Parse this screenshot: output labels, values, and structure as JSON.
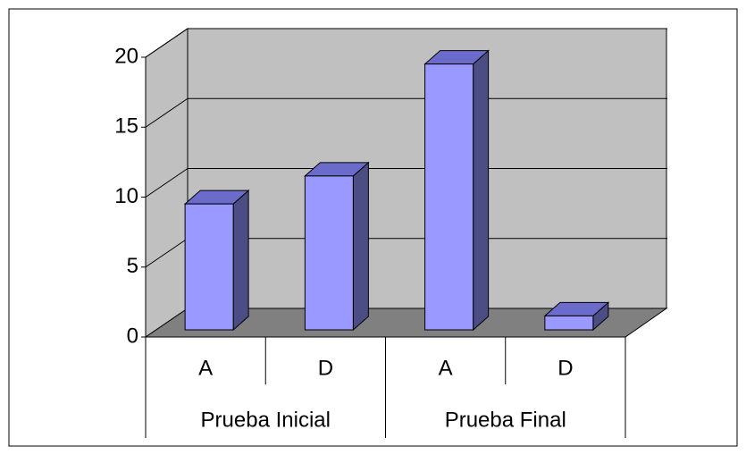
{
  "chart_data": {
    "type": "bar3d",
    "categories": [
      "A",
      "D",
      "A",
      "D"
    ],
    "groups": [
      "Prueba Inicial",
      "Prueba Final"
    ],
    "values": [
      9,
      11,
      19,
      1
    ],
    "color": "#9999ff",
    "ylim": [
      0,
      20
    ],
    "yticks": [
      0,
      5,
      10,
      15,
      20
    ],
    "grid": true
  }
}
